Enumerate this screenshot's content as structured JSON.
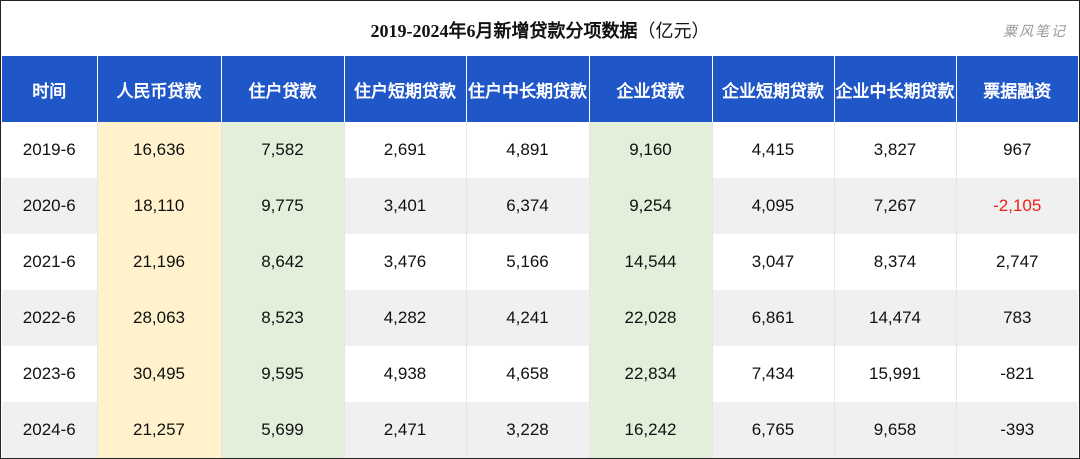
{
  "title": {
    "main": "2019-2024年6月新增贷款分项数据",
    "unit": "（亿元）"
  },
  "watermark": "粟风笔记",
  "colors": {
    "header_bg": "#1f56c8",
    "rmb_col_bg": "#fff2cc",
    "household_col_bg": "#e2efda",
    "enterprise_col_bg": "#e2efda",
    "alt_row_bg": "#f0f0f0",
    "negative_highlight": "#e8211a"
  },
  "chart_data": {
    "type": "table",
    "title": "2019-2024年6月新增贷款分项数据（亿元）",
    "columns": [
      "时间",
      "人民币贷款",
      "住户贷款",
      "住户短期贷款",
      "住户中长期贷款",
      "企业贷款",
      "企业短期贷款",
      "企业中长期贷款",
      "票据融资"
    ],
    "rows": [
      [
        "2019-6",
        "16,636",
        "7,582",
        "2,691",
        "4,891",
        "9,160",
        "4,415",
        "3,827",
        "967"
      ],
      [
        "2020-6",
        "18,110",
        "9,775",
        "3,401",
        "6,374",
        "9,254",
        "4,095",
        "7,267",
        "-2,105"
      ],
      [
        "2021-6",
        "21,196",
        "8,642",
        "3,476",
        "5,166",
        "14,544",
        "3,047",
        "8,374",
        "2,747"
      ],
      [
        "2022-6",
        "28,063",
        "8,523",
        "4,282",
        "4,241",
        "22,028",
        "6,861",
        "14,474",
        "783"
      ],
      [
        "2023-6",
        "30,495",
        "9,595",
        "4,938",
        "4,658",
        "22,834",
        "7,434",
        "15,991",
        "-821"
      ],
      [
        "2024-6",
        "21,257",
        "5,699",
        "2,471",
        "3,228",
        "16,242",
        "6,765",
        "9,658",
        "-393"
      ]
    ]
  }
}
